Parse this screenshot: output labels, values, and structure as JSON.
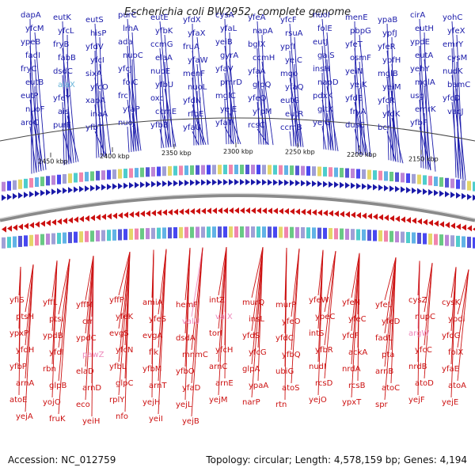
{
  "header": {
    "title": "Escherichia coli BW2952, complete genome"
  },
  "footer": {
    "accession": "Accession: NC_012759",
    "summary": "Topology: circular; Length: 4,578,159 bp; Genes: 4,194"
  },
  "colors": {
    "forward_strand": "#1a1aaa",
    "reverse_strand": "#cc1111",
    "alternate_top": "#66b3d9",
    "alternate_bottom": "#ee88bb",
    "backbone": "#7a7a7a"
  },
  "scale_ticks": [
    "2450 kbp",
    "2400 kbp",
    "2350 kbp",
    "2300 kbp",
    "2250 kbp",
    "2200 kbp",
    "2150 kbp"
  ],
  "top_genes": [
    {
      "label": "dapA"
    },
    {
      "label": "eutK"
    },
    {
      "label": "eutS"
    },
    {
      "label": "purC"
    },
    {
      "label": "eutE"
    },
    {
      "label": "yfdX"
    },
    {
      "label": "cysA"
    },
    {
      "label": "yfeA"
    },
    {
      "label": "yfcF"
    },
    {
      "label": "nuoI"
    },
    {
      "label": "menE"
    },
    {
      "label": "ypaB"
    },
    {
      "label": "cirA"
    },
    {
      "label": "yohC"
    },
    {
      "label": "yfcM"
    },
    {
      "label": "yfcL"
    },
    {
      "label": "hisP"
    },
    {
      "label": "lrhA"
    },
    {
      "label": "yfbK"
    },
    {
      "label": "yfaX"
    },
    {
      "label": "yfaL"
    },
    {
      "label": "napA"
    },
    {
      "label": "rsuA"
    },
    {
      "label": "folE"
    },
    {
      "label": "pbpG"
    },
    {
      "label": "ypfJ"
    },
    {
      "label": "eutH"
    },
    {
      "label": "yfeX"
    },
    {
      "label": "ypeB"
    },
    {
      "label": "fryB"
    },
    {
      "label": "yfdV"
    },
    {
      "label": "ada"
    },
    {
      "label": "ccmG"
    },
    {
      "label": "fruA"
    },
    {
      "label": "yeiB"
    },
    {
      "label": "bglX"
    },
    {
      "label": "ypfI"
    },
    {
      "label": "eutJ"
    },
    {
      "label": "yfeT"
    },
    {
      "label": "yfeR"
    },
    {
      "label": "ypdE"
    },
    {
      "label": "emrY"
    },
    {
      "label": "fadI"
    },
    {
      "label": "fabB"
    },
    {
      "label": "yfcI"
    },
    {
      "label": "nuoC"
    },
    {
      "label": "elaA"
    },
    {
      "label": "yfaW"
    },
    {
      "label": "gyrA"
    },
    {
      "label": "ccmH"
    },
    {
      "label": "yeiC"
    },
    {
      "label": "galS"
    },
    {
      "label": "osmF"
    },
    {
      "label": "ypfH"
    },
    {
      "label": "eutA"
    },
    {
      "label": "cysM"
    },
    {
      "label": "fryC"
    },
    {
      "label": "dsdC"
    },
    {
      "label": "sixA"
    },
    {
      "label": "yfcJ"
    },
    {
      "label": "nuoE"
    },
    {
      "label": "menF"
    },
    {
      "label": "yfaV"
    },
    {
      "label": "yfaA"
    },
    {
      "label": "mqo"
    },
    {
      "label": "insH"
    },
    {
      "label": "yeiN"
    },
    {
      "label": "mglB"
    },
    {
      "label": "yehY"
    },
    {
      "label": "nudK"
    },
    {
      "label": "eutB"
    },
    {
      "label": "alaX"
    },
    {
      "label": "yfcO"
    },
    {
      "label": "folC"
    },
    {
      "label": "yfbU"
    },
    {
      "label": "nuoL"
    },
    {
      "label": "pmrD"
    },
    {
      "label": "glpQ"
    },
    {
      "label": "yfaQ"
    },
    {
      "label": "napD"
    },
    {
      "label": "yejK"
    },
    {
      "label": "yeiM"
    },
    {
      "label": "mglA"
    },
    {
      "label": "bamC"
    },
    {
      "label": "eutP"
    },
    {
      "label": "yfeY"
    },
    {
      "label": "xapA"
    },
    {
      "label": "frc"
    },
    {
      "label": "oxc"
    },
    {
      "label": "yfdN"
    },
    {
      "label": "mglC"
    },
    {
      "label": "yfeQ"
    },
    {
      "label": "eutG"
    },
    {
      "label": "pdxK"
    },
    {
      "label": "yfdE"
    },
    {
      "label": "yfcR"
    },
    {
      "label": "usg"
    },
    {
      "label": "yfcD"
    },
    {
      "label": "nuoF"
    },
    {
      "label": "ais"
    },
    {
      "label": "inaA"
    },
    {
      "label": "yfaP"
    },
    {
      "label": "ccmE"
    },
    {
      "label": "rfbE"
    },
    {
      "label": "yeiE"
    },
    {
      "label": "yfpM"
    },
    {
      "label": "eutR"
    },
    {
      "label": "gltX"
    },
    {
      "label": "fryA"
    },
    {
      "label": "yfdK"
    },
    {
      "label": "emrK"
    },
    {
      "label": "vacJ"
    },
    {
      "label": "aroC"
    },
    {
      "label": "purF"
    },
    {
      "label": "yfbT"
    },
    {
      "label": "nuoJ"
    },
    {
      "label": "yfbB"
    },
    {
      "label": "yfaU"
    },
    {
      "label": "yfaT"
    },
    {
      "label": "rcsC"
    },
    {
      "label": "ccmB"
    },
    {
      "label": "yejG"
    },
    {
      "label": "dusC"
    },
    {
      "label": "bcr"
    },
    {
      "label": "yfbF"
    }
  ],
  "bottom_genes": [
    {
      "label": "yfiS"
    },
    {
      "label": "yffL"
    },
    {
      "label": "yffM"
    },
    {
      "label": "yffP"
    },
    {
      "label": "amiA"
    },
    {
      "label": "hemF"
    },
    {
      "label": "intZ"
    },
    {
      "label": "murQ"
    },
    {
      "label": "murP"
    },
    {
      "label": "yfeW"
    },
    {
      "label": "yfeN"
    },
    {
      "label": "yfeL"
    },
    {
      "label": "cysZ"
    },
    {
      "label": "cysK"
    },
    {
      "label": "ptsH"
    },
    {
      "label": "ptsI"
    },
    {
      "label": "crr"
    },
    {
      "label": "yfeK"
    },
    {
      "label": "yfeS"
    },
    {
      "label": "valU"
    },
    {
      "label": "valX"
    },
    {
      "label": "insL"
    },
    {
      "label": "yfeO"
    },
    {
      "label": "ypeC"
    },
    {
      "label": "yfeC"
    },
    {
      "label": "yfeD"
    },
    {
      "label": "nupC"
    },
    {
      "label": "ypdI"
    },
    {
      "label": "ypxP"
    },
    {
      "label": "ypdB"
    },
    {
      "label": "ypdC"
    },
    {
      "label": "evgS"
    },
    {
      "label": "evgA"
    },
    {
      "label": "dsdA"
    },
    {
      "label": "torI"
    },
    {
      "label": "yfdS"
    },
    {
      "label": "yfdC"
    },
    {
      "label": "intS"
    },
    {
      "label": "yfdF"
    },
    {
      "label": "fadL"
    },
    {
      "label": "argW"
    },
    {
      "label": "yfdG"
    },
    {
      "label": "yfdH"
    },
    {
      "label": "yfdI"
    },
    {
      "label": "pawZ"
    },
    {
      "label": "yfcN"
    },
    {
      "label": "flk"
    },
    {
      "label": "mnmC"
    },
    {
      "label": "yfcH"
    },
    {
      "label": "yfcG"
    },
    {
      "label": "yfbQ"
    },
    {
      "label": "yfbR"
    },
    {
      "label": "ackA"
    },
    {
      "label": "pta"
    },
    {
      "label": "yfcC"
    },
    {
      "label": "folX"
    },
    {
      "label": "yfbP"
    },
    {
      "label": "rbn"
    },
    {
      "label": "elaD"
    },
    {
      "label": "yfbL"
    },
    {
      "label": "yfbM"
    },
    {
      "label": "yfbO"
    },
    {
      "label": "arnC"
    },
    {
      "label": "glpA"
    },
    {
      "label": "ubiG"
    },
    {
      "label": "nudI"
    },
    {
      "label": "nrdA"
    },
    {
      "label": "arnB"
    },
    {
      "label": "nrdB"
    },
    {
      "label": "yfaE"
    },
    {
      "label": "arnA"
    },
    {
      "label": "glpB"
    },
    {
      "label": "arnD"
    },
    {
      "label": "glpC"
    },
    {
      "label": "arnT"
    },
    {
      "label": "yfaD"
    },
    {
      "label": "arnE"
    },
    {
      "label": "ypaA"
    },
    {
      "label": "atoS"
    },
    {
      "label": "rcsD"
    },
    {
      "label": "rcsB"
    },
    {
      "label": "atoC"
    },
    {
      "label": "atoD"
    },
    {
      "label": "atoA"
    },
    {
      "label": "atoE"
    },
    {
      "label": "yojO"
    },
    {
      "label": "eco"
    },
    {
      "label": "rplY"
    },
    {
      "label": "yejH"
    },
    {
      "label": "yejL"
    },
    {
      "label": "yejM"
    },
    {
      "label": "narP"
    },
    {
      "label": "rtn"
    },
    {
      "label": "yejO"
    },
    {
      "label": "ypxT"
    },
    {
      "label": "spr"
    },
    {
      "label": "yejF"
    },
    {
      "label": "yejE"
    },
    {
      "label": "yejA"
    },
    {
      "label": "fruK"
    },
    {
      "label": "yeiH"
    },
    {
      "label": "nfo"
    },
    {
      "label": "yeiI"
    },
    {
      "label": "yejB"
    }
  ]
}
